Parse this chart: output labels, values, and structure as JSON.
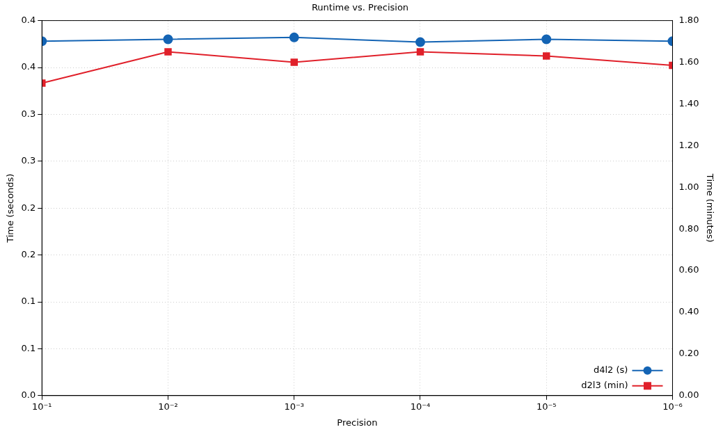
{
  "chart_data": {
    "type": "line",
    "title": "Runtime vs. Precision",
    "xlabel": "Precision",
    "ylabel": "Time (seconds)",
    "y2label": "Time (minutes)",
    "x": [
      0.1,
      0.01,
      0.001,
      0.0001,
      1e-05,
      1e-06
    ],
    "series": [
      {
        "name": "d4l2 (s)",
        "color": "#1464b4",
        "marker": "circle",
        "values": [
          0.378,
          0.38,
          0.382,
          0.377,
          0.38,
          0.378
        ]
      },
      {
        "name": "d2l3 (min)",
        "color": "#e0202a",
        "marker": "square",
        "axis": "y2",
        "values": [
          1.5,
          1.65,
          1.6,
          1.65,
          1.63,
          1.585
        ]
      }
    ],
    "log": "x",
    "xlim": [
      0.1,
      1e-06
    ],
    "xticks": [
      {
        "value": 0.1,
        "label": "10⁻¹"
      },
      {
        "value": 0.01,
        "label": "10⁻²"
      },
      {
        "value": 0.001,
        "label": "10⁻³"
      },
      {
        "value": 0.0001,
        "label": "10⁻⁴"
      },
      {
        "value": 1e-05,
        "label": "10⁻⁵"
      },
      {
        "value": 1e-06,
        "label": "10⁻⁶"
      }
    ],
    "ylim": [
      0,
      0.4
    ],
    "yticks": [
      {
        "value": 0,
        "label": "0.0"
      },
      {
        "value": 0.05,
        "label": "0.1"
      },
      {
        "value": 0.1,
        "label": "0.1"
      },
      {
        "value": 0.15,
        "label": "0.2"
      },
      {
        "value": 0.2,
        "label": "0.2"
      },
      {
        "value": 0.25,
        "label": "0.3"
      },
      {
        "value": 0.3,
        "label": "0.3"
      },
      {
        "value": 0.35,
        "label": "0.4"
      },
      {
        "value": 0.4,
        "label": "0.4"
      }
    ],
    "y2lim": [
      0,
      1.8
    ],
    "y2ticks": [
      {
        "value": 0,
        "label": "0.00"
      },
      {
        "value": 0.2,
        "label": "0.20"
      },
      {
        "value": 0.4,
        "label": "0.40"
      },
      {
        "value": 0.6,
        "label": "0.60"
      },
      {
        "value": 0.8,
        "label": "0.80"
      },
      {
        "value": 1,
        "label": "1.00"
      },
      {
        "value": 1.2,
        "label": "1.20"
      },
      {
        "value": 1.4,
        "label": "1.40"
      },
      {
        "value": 1.6,
        "label": "1.60"
      },
      {
        "value": 1.8,
        "label": "1.80"
      }
    ],
    "grid": true,
    "legend": "bottom right",
    "line_style": "solid"
  }
}
